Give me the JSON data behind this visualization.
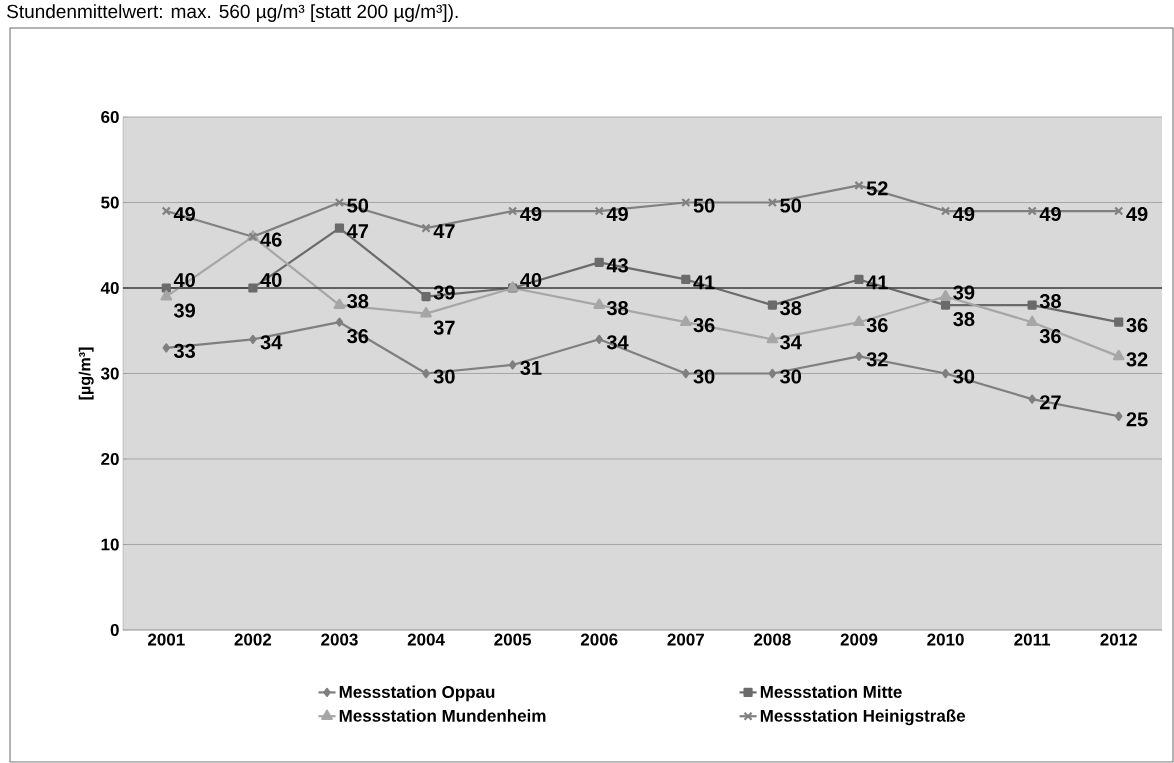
{
  "chart_data": {
    "type": "line",
    "annotations": [
      "Stundenmittelwert: max. 560 µg/m³ [statt 200 µg/m³])."
    ],
    "ylabel": "[µg/m³]",
    "categories": [
      "2001",
      "2002",
      "2003",
      "2004",
      "2005",
      "2006",
      "2007",
      "2008",
      "2009",
      "2010",
      "2011",
      "2012"
    ],
    "series": [
      {
        "name": "Messstation Oppau",
        "color": "#7f7f7f",
        "marker": "diamond",
        "values": [
          33,
          34,
          36,
          30,
          31,
          34,
          30,
          30,
          32,
          30,
          27,
          25
        ]
      },
      {
        "name": "Messstation Mitte",
        "color": "#6b6b6b",
        "marker": "square",
        "values": [
          40,
          40,
          47,
          39,
          40,
          43,
          41,
          38,
          41,
          38,
          38,
          36
        ]
      },
      {
        "name": "Messstation Mundenheim",
        "color": "#a6a6a6",
        "marker": "triangle",
        "values": [
          39,
          46,
          38,
          37,
          40,
          38,
          36,
          34,
          36,
          39,
          36,
          32
        ],
        "value_labels": [
          "39",
          null,
          "38",
          "37",
          null,
          "38",
          "36",
          "34",
          "36",
          "39",
          "36",
          "32"
        ]
      },
      {
        "name": "Messstation Heinigstraße",
        "color": "#808080",
        "marker": "cross",
        "values": [
          49,
          46,
          50,
          47,
          49,
          49,
          50,
          50,
          52,
          49,
          49,
          49
        ]
      }
    ],
    "ylim": [
      0,
      60
    ],
    "yticks": [
      0,
      10,
      20,
      30,
      40,
      50,
      60
    ],
    "ref_lines": [
      {
        "axis": "y",
        "value": 40,
        "color": "#404040"
      }
    ],
    "grid": "y",
    "legend": "bottom",
    "data_labels": true
  }
}
